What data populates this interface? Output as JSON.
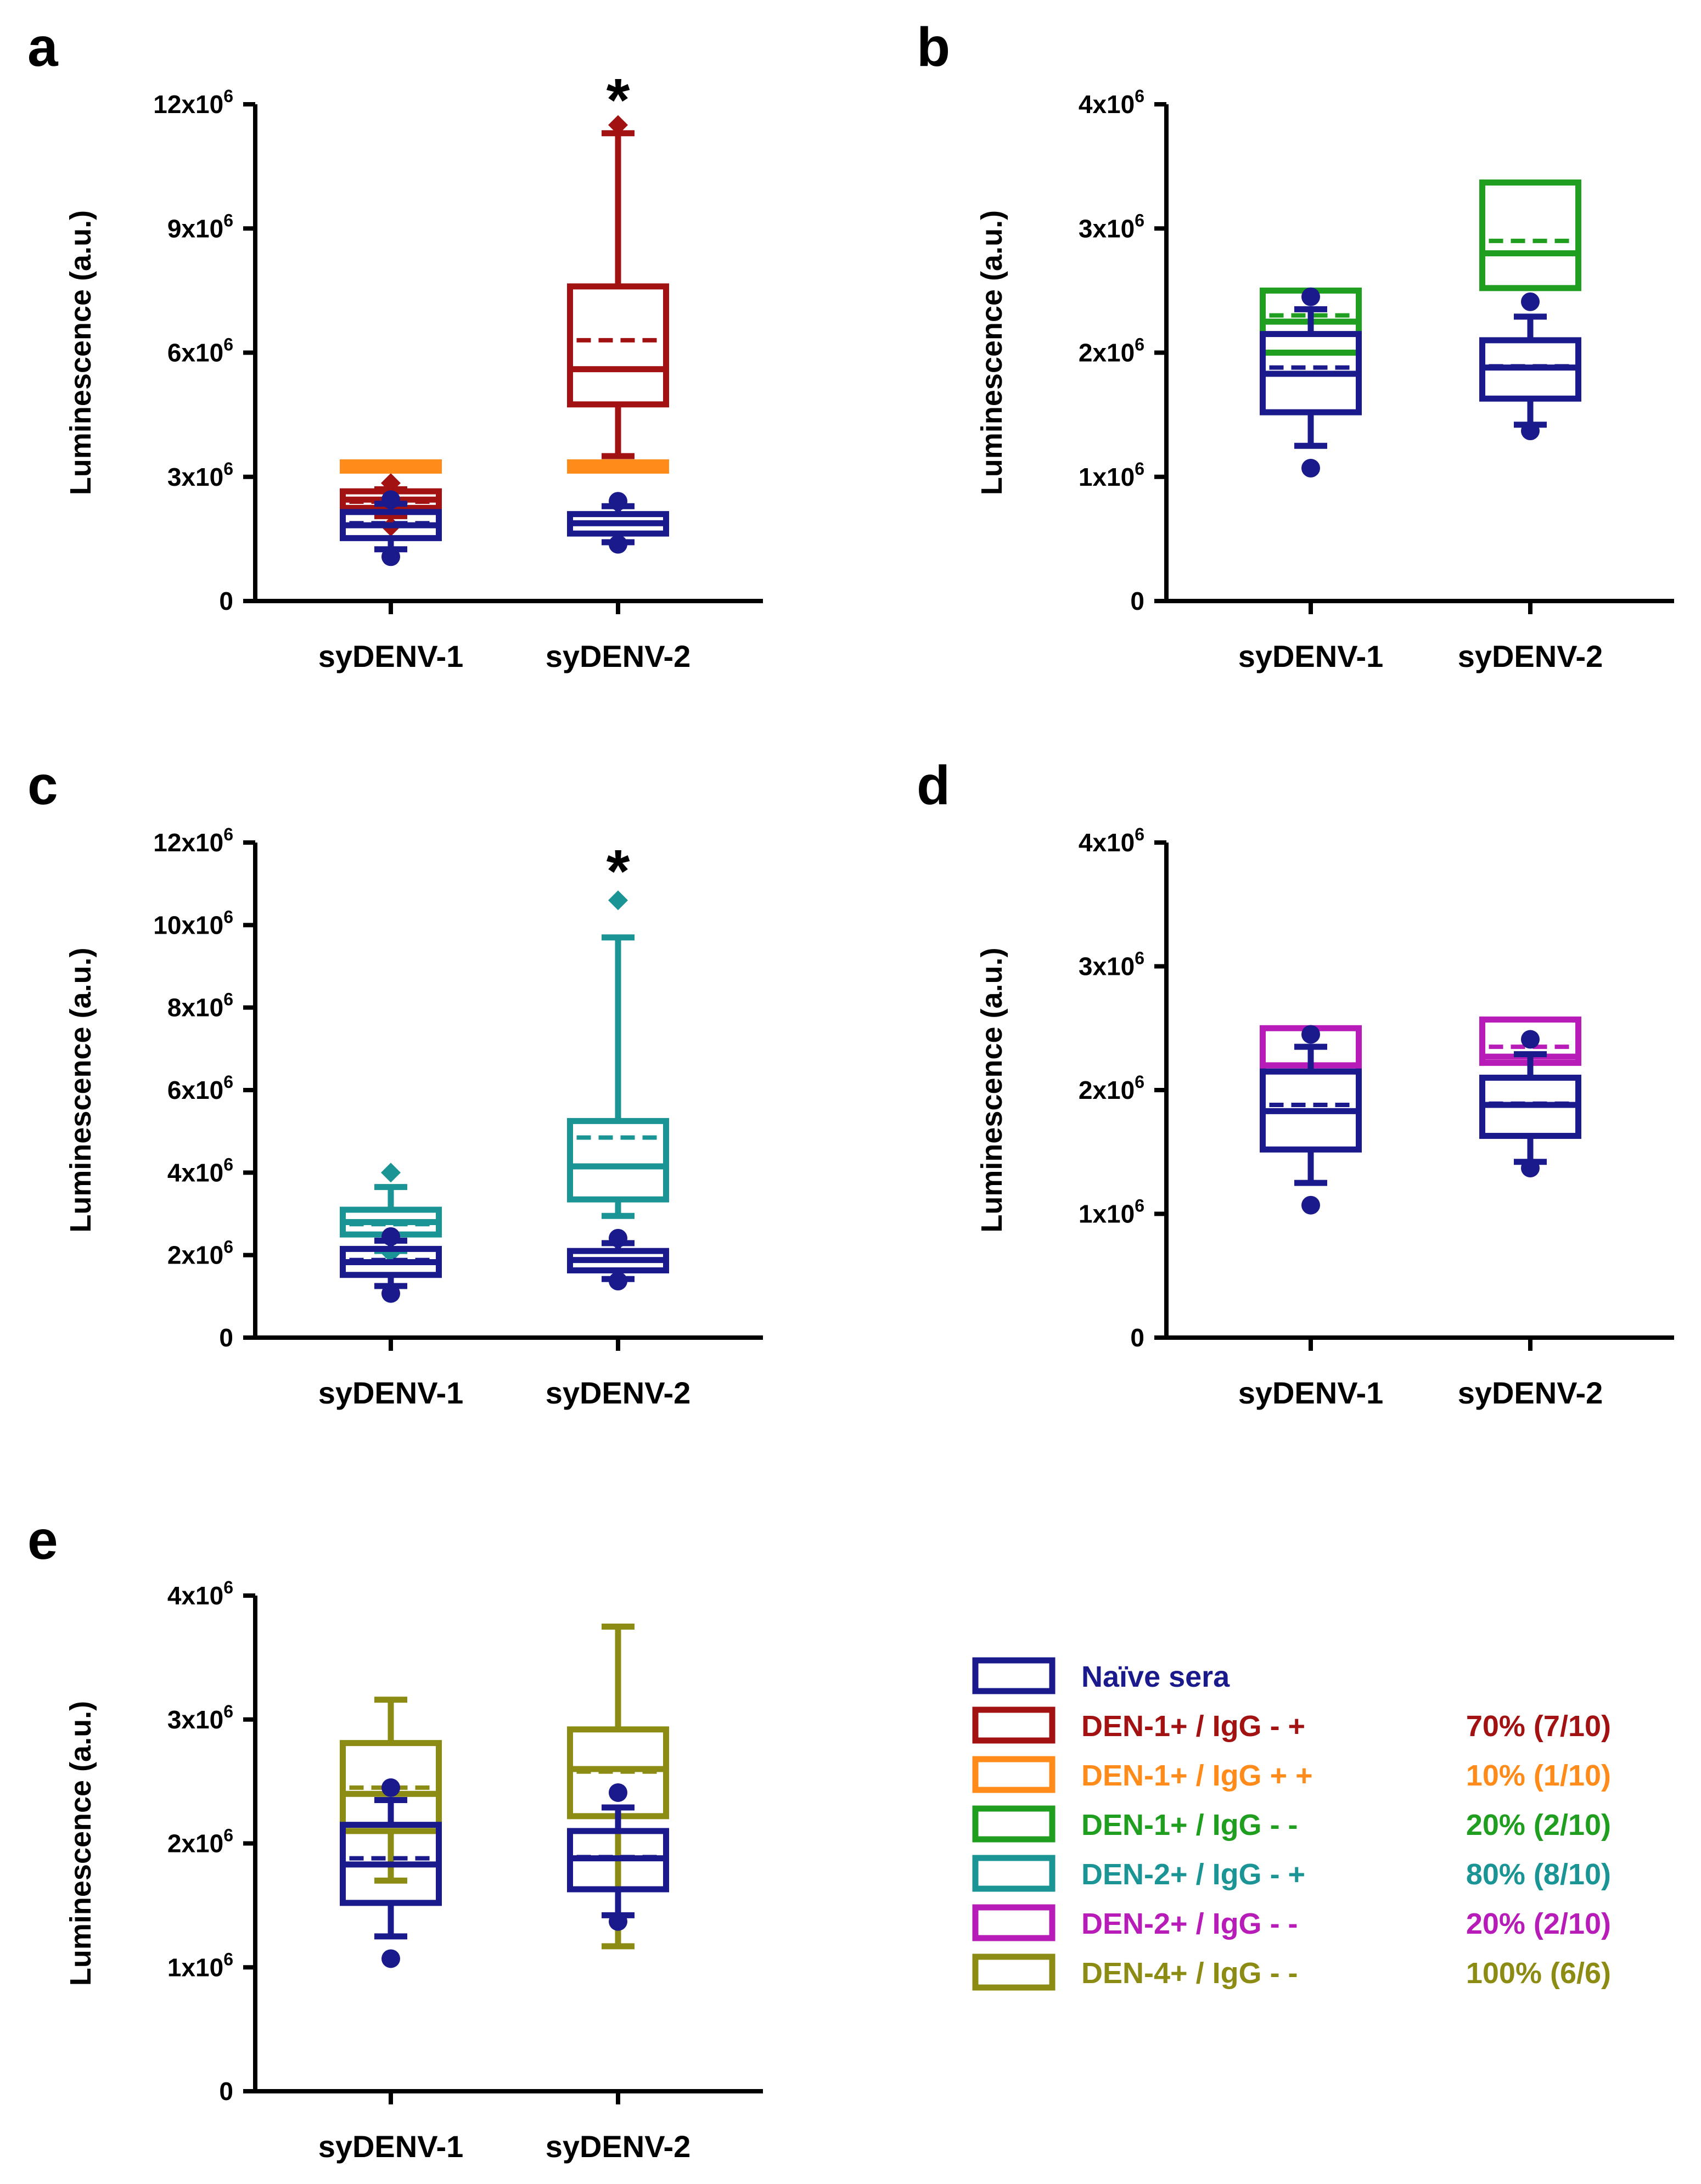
{
  "colors": {
    "axis": "#000000",
    "naive": "#1a1a8c",
    "den1_mp": "#a31212",
    "den1_pp": "#ff8c1a",
    "den1_mm": "#1f9e1f",
    "den2_mp": "#1a9494",
    "den2_mm": "#b81cb8",
    "den4_mm": "#8c8c14"
  },
  "legend": {
    "items": [
      {
        "key": "naive",
        "label": "Naïve sera",
        "pct": ""
      },
      {
        "key": "den1_mp",
        "label": "DEN-1+ / IgG - +",
        "pct": "70% (7/10)"
      },
      {
        "key": "den1_pp",
        "label": "DEN-1+ / IgG + +",
        "pct": "10% (1/10)"
      },
      {
        "key": "den1_mm",
        "label": "DEN-1+ / IgG - -",
        "pct": "20% (2/10)"
      },
      {
        "key": "den2_mp",
        "label": "DEN-2+ / IgG - +",
        "pct": "80% (8/10)"
      },
      {
        "key": "den2_mm",
        "label": "DEN-2+ / IgG - -",
        "pct": "20% (2/10)"
      },
      {
        "key": "den4_mm",
        "label": "DEN-4+ / IgG - -",
        "pct": "100% (6/6)"
      }
    ]
  },
  "chart_data": [
    {
      "panel": "a",
      "type": "box",
      "ylabel": "Luminescence (a.u.)",
      "ylim": [
        0,
        12000000
      ],
      "yticks": [
        {
          "value": 0,
          "mant": "0"
        },
        {
          "value": 3000000,
          "mant": "3x10",
          "exp": "6"
        },
        {
          "value": 6000000,
          "mant": "6x10",
          "exp": "6"
        },
        {
          "value": 9000000,
          "mant": "9x10",
          "exp": "6"
        },
        {
          "value": 12000000,
          "mant": "12x10",
          "exp": "6"
        }
      ],
      "categories": [
        "syDENV-1",
        "syDENV-2"
      ],
      "series": [
        {
          "name": "Naïve sera",
          "color_key": "naive",
          "boxes": [
            {
              "whislo": 1250000,
              "q1": 1520000,
              "med": 1830000,
              "mean": 1880000,
              "q3": 2150000,
              "whishi": 2350000,
              "fliers": [
                1070000,
                2450000
              ],
              "flier_shape": "circle"
            },
            {
              "whislo": 1420000,
              "q1": 1630000,
              "med": 1880000,
              "mean": 1890000,
              "q3": 2100000,
              "whishi": 2290000,
              "fliers": [
                1370000,
                2410000
              ],
              "flier_shape": "circle"
            }
          ]
        },
        {
          "name": "DEN-1+ / IgG - +",
          "color_key": "den1_mp",
          "boxes": [
            {
              "whislo": 2050000,
              "q1": 2250000,
              "med": 2450000,
              "mean": 2400000,
              "q3": 2650000,
              "whishi": 2700000,
              "fliers": [
                1800000,
                2850000
              ],
              "flier_shape": "diamond"
            },
            {
              "whislo": 3500000,
              "q1": 4750000,
              "med": 5600000,
              "mean": 6300000,
              "q3": 7600000,
              "whishi": 11300000,
              "fliers": [
                11500000
              ],
              "flier_shape": "diamond"
            }
          ]
        },
        {
          "name": "DEN-1+ / IgG + +",
          "color_key": "den1_pp",
          "boxes": [
            {
              "whislo": 3150000,
              "q1": 3150000,
              "med": 3250000,
              "mean": 3200000,
              "q3": 3350000,
              "whishi": 3350000,
              "fliers": []
            },
            {
              "whislo": 3150000,
              "q1": 3150000,
              "med": 3250000,
              "mean": 3250000,
              "q3": 3350000,
              "whishi": 3350000,
              "fliers": []
            }
          ]
        }
      ],
      "annotations": [
        {
          "category": 1,
          "value": 12000000,
          "text": "*"
        }
      ]
    },
    {
      "panel": "b",
      "type": "box",
      "ylabel": "Luminescence (a.u.)",
      "ylim": [
        0,
        4000000
      ],
      "yticks": [
        {
          "value": 0,
          "mant": "0"
        },
        {
          "value": 1000000,
          "mant": "1x10",
          "exp": "6"
        },
        {
          "value": 2000000,
          "mant": "2x10",
          "exp": "6"
        },
        {
          "value": 3000000,
          "mant": "3x10",
          "exp": "6"
        },
        {
          "value": 4000000,
          "mant": "4x10",
          "exp": "6"
        }
      ],
      "categories": [
        "syDENV-1",
        "syDENV-2"
      ],
      "series": [
        {
          "name": "Naïve sera",
          "color_key": "naive",
          "boxes": [
            {
              "whislo": 1250000,
              "q1": 1520000,
              "med": 1830000,
              "mean": 1880000,
              "q3": 2150000,
              "whishi": 2350000,
              "fliers": [
                1070000,
                2450000
              ],
              "flier_shape": "circle"
            },
            {
              "whislo": 1420000,
              "q1": 1630000,
              "med": 1880000,
              "mean": 1890000,
              "q3": 2100000,
              "whishi": 2290000,
              "fliers": [
                1370000,
                2410000
              ],
              "flier_shape": "circle"
            }
          ]
        },
        {
          "name": "DEN-1+ / IgG - -",
          "color_key": "den1_mm",
          "boxes": [
            {
              "whislo": 2000000,
              "q1": 2000000,
              "med": 2250000,
              "mean": 2300000,
              "q3": 2500000,
              "whishi": 2500000,
              "fliers": []
            },
            {
              "whislo": 2520000,
              "q1": 2520000,
              "med": 2800000,
              "mean": 2900000,
              "q3": 3370000,
              "whishi": 3370000,
              "fliers": []
            }
          ]
        }
      ],
      "annotations": []
    },
    {
      "panel": "c",
      "type": "box",
      "ylabel": "Luminescence (a.u.)",
      "ylim": [
        0,
        12000000
      ],
      "yticks": [
        {
          "value": 0,
          "mant": "0"
        },
        {
          "value": 2000000,
          "mant": "2x10",
          "exp": "6"
        },
        {
          "value": 4000000,
          "mant": "4x10",
          "exp": "6"
        },
        {
          "value": 6000000,
          "mant": "6x10",
          "exp": "6"
        },
        {
          "value": 8000000,
          "mant": "8x10",
          "exp": "6"
        },
        {
          "value": 10000000,
          "mant": "10x10",
          "exp": "6"
        },
        {
          "value": 12000000,
          "mant": "12x10",
          "exp": "6"
        }
      ],
      "categories": [
        "syDENV-1",
        "syDENV-2"
      ],
      "series": [
        {
          "name": "Naïve sera",
          "color_key": "naive",
          "boxes": [
            {
              "whislo": 1250000,
              "q1": 1520000,
              "med": 1830000,
              "mean": 1880000,
              "q3": 2150000,
              "whishi": 2350000,
              "fliers": [
                1070000,
                2450000
              ],
              "flier_shape": "circle"
            },
            {
              "whislo": 1420000,
              "q1": 1630000,
              "med": 1880000,
              "mean": 1890000,
              "q3": 2100000,
              "whishi": 2290000,
              "fliers": [
                1370000,
                2410000
              ],
              "flier_shape": "circle"
            }
          ]
        },
        {
          "name": "DEN-2+ / IgG - +",
          "color_key": "den2_mp",
          "boxes": [
            {
              "whislo": 2100000,
              "q1": 2500000,
              "med": 2800000,
              "mean": 2750000,
              "q3": 3100000,
              "whishi": 3650000,
              "fliers": [
                2050000,
                4000000
              ],
              "flier_shape": "diamond"
            },
            {
              "whislo": 2950000,
              "q1": 3350000,
              "med": 4150000,
              "mean": 4850000,
              "q3": 5250000,
              "whishi": 9700000,
              "fliers": [
                10600000
              ],
              "flier_shape": "diamond"
            }
          ]
        }
      ],
      "annotations": [
        {
          "category": 1,
          "value": 11200000,
          "text": "*"
        }
      ]
    },
    {
      "panel": "d",
      "type": "box",
      "ylabel": "Luminescence (a.u.)",
      "ylim": [
        0,
        4000000
      ],
      "yticks": [
        {
          "value": 0,
          "mant": "0"
        },
        {
          "value": 1000000,
          "mant": "1x10",
          "exp": "6"
        },
        {
          "value": 2000000,
          "mant": "2x10",
          "exp": "6"
        },
        {
          "value": 3000000,
          "mant": "3x10",
          "exp": "6"
        },
        {
          "value": 4000000,
          "mant": "4x10",
          "exp": "6"
        }
      ],
      "categories": [
        "syDENV-1",
        "syDENV-2"
      ],
      "series": [
        {
          "name": "Naïve sera",
          "color_key": "naive",
          "boxes": [
            {
              "whislo": 1250000,
              "q1": 1520000,
              "med": 1830000,
              "mean": 1880000,
              "q3": 2150000,
              "whishi": 2350000,
              "fliers": [
                1070000,
                2450000
              ],
              "flier_shape": "circle"
            },
            {
              "whislo": 1420000,
              "q1": 1630000,
              "med": 1880000,
              "mean": 1890000,
              "q3": 2100000,
              "whishi": 2290000,
              "fliers": [
                1370000,
                2410000
              ],
              "flier_shape": "circle"
            }
          ]
        },
        {
          "name": "DEN-2+ / IgG - -",
          "color_key": "den2_mm",
          "boxes": [
            {
              "whislo": 2150000,
              "q1": 2150000,
              "med": 2200000,
              "mean": 2200000,
              "q3": 2500000,
              "whishi": 2500000,
              "fliers": []
            },
            {
              "whislo": 2220000,
              "q1": 2220000,
              "med": 2270000,
              "mean": 2350000,
              "q3": 2570000,
              "whishi": 2570000,
              "fliers": []
            }
          ]
        }
      ],
      "annotations": []
    },
    {
      "panel": "e",
      "type": "box",
      "ylabel": "Luminescence (a.u.)",
      "ylim": [
        0,
        4000000
      ],
      "yticks": [
        {
          "value": 0,
          "mant": "0"
        },
        {
          "value": 1000000,
          "mant": "1x10",
          "exp": "6"
        },
        {
          "value": 2000000,
          "mant": "2x10",
          "exp": "6"
        },
        {
          "value": 3000000,
          "mant": "3x10",
          "exp": "6"
        },
        {
          "value": 4000000,
          "mant": "4x10",
          "exp": "6"
        }
      ],
      "categories": [
        "syDENV-1",
        "syDENV-2"
      ],
      "series": [
        {
          "name": "Naïve sera",
          "color_key": "naive",
          "boxes": [
            {
              "whislo": 1250000,
              "q1": 1520000,
              "med": 1830000,
              "mean": 1880000,
              "q3": 2150000,
              "whishi": 2350000,
              "fliers": [
                1070000,
                2450000
              ],
              "flier_shape": "circle"
            },
            {
              "whislo": 1420000,
              "q1": 1630000,
              "med": 1880000,
              "mean": 1890000,
              "q3": 2100000,
              "whishi": 2290000,
              "fliers": [
                1370000,
                2410000
              ],
              "flier_shape": "circle"
            }
          ]
        },
        {
          "name": "DEN-4+ / IgG - -",
          "color_key": "den4_mm",
          "boxes": [
            {
              "whislo": 1700000,
              "q1": 2100000,
              "med": 2400000,
              "mean": 2450000,
              "q3": 2810000,
              "whishi": 3160000,
              "fliers": []
            },
            {
              "whislo": 1170000,
              "q1": 2220000,
              "med": 2600000,
              "mean": 2580000,
              "q3": 2920000,
              "whishi": 3750000,
              "fliers": []
            }
          ]
        }
      ],
      "annotations": []
    }
  ]
}
